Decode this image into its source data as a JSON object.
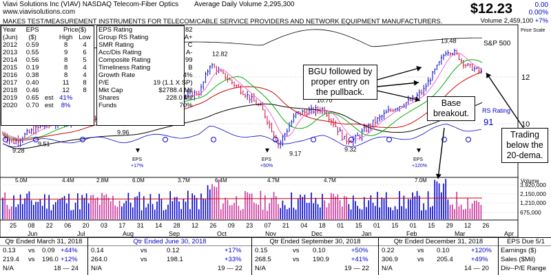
{
  "header": {
    "company_line": "Viavi Solutions Inc   (VIAV) NASDAQ Telecom-Fiber Optics",
    "avg_volume": "Average Daily Volume 2,295,300",
    "website": "www.viavisolutions.com",
    "description": "MAKES TEST/MEASUREMENT INSTRUMENTS FOR TELECOM/CABLE SERVICE PROVIDERS AND NETWORK EQUIPMENT MANUFACTURERS.",
    "price": "$12.23",
    "change": "0.00",
    "change_pct": "0.00%",
    "volume": "Volume 2,459,100",
    "vol_pct": "+7%"
  },
  "eps_table": {
    "headers": [
      "Year",
      "EPS",
      "Price($)"
    ],
    "subheaders": [
      "(Jun)",
      "($)",
      "High",
      "Low"
    ],
    "rows": [
      [
        "2012",
        "0.59",
        "",
        "8",
        "4"
      ],
      [
        "2013",
        "0.55",
        "",
        "9",
        "6"
      ],
      [
        "2014",
        "0.56",
        "",
        "8",
        "5"
      ],
      [
        "2015",
        "0.19",
        "",
        "8",
        "4"
      ],
      [
        "2016",
        "0.38",
        "",
        "8",
        "4"
      ],
      [
        "2017",
        "0.40",
        "",
        "11",
        "8"
      ],
      [
        "2018",
        "0.46",
        "",
        "12",
        "8"
      ],
      [
        "2019",
        "0.65",
        "est",
        "41%",
        ""
      ],
      [
        "2020",
        "0.70",
        "est",
        "8%",
        ""
      ]
    ]
  },
  "ratings": [
    [
      "EPS Rating",
      "82"
    ],
    [
      "Group RS Rating",
      "A+"
    ],
    [
      "SMR Rating",
      "C"
    ],
    [
      "Acc/Dis Rating",
      "A-"
    ],
    [
      "Composite Rating",
      "99"
    ],
    [
      "Timeliness Rating",
      "B"
    ],
    [
      "Growth Rate",
      "4%"
    ],
    [
      "P/E",
      "19 (1.1 X SP)"
    ],
    [
      "Mkt Cap",
      "$2788.4 Mil"
    ],
    [
      "Shares",
      "228.0 Mil"
    ],
    [
      "Funds",
      "70%"
    ]
  ],
  "callouts": {
    "bgu": "BGU followed by proper entry on the pullback.",
    "base": "Base breakout.",
    "trading": "Trading below the 20-dema."
  },
  "chart_data": {
    "type": "bar",
    "price_axis_labels": [
      "12",
      "10"
    ],
    "price_scale_label": "Price Scale",
    "sp500_label": "S&P 500",
    "rs_label": "RS Rating",
    "rs_value": "91",
    "price_annotations": [
      "13.48",
      "12.82",
      "10.70",
      "9.96",
      "9.51",
      "9.28",
      "9.17",
      "9.32"
    ],
    "eps_markers": [
      {
        "label": "EPS",
        "pct": "+17%"
      },
      {
        "label": "EPS",
        "pct": "+50%"
      },
      {
        "label": "EPS",
        "pct": "+120%"
      }
    ],
    "volume_axis_label": "Volume",
    "volume_ticks": [
      "3,920,000",
      "2,150,000",
      "1,210,000",
      "675,000"
    ],
    "volume_annotations": [
      "5.0M",
      "4.4M",
      "2.8M",
      "6.0M",
      "3.7M",
      "6.4M",
      "4.7M",
      "4.7M",
      "7.0M"
    ],
    "date_labels": [
      "25",
      "08",
      "22",
      "06",
      "20",
      "03",
      "17",
      "31",
      "14",
      "28",
      "12",
      "26",
      "09",
      "23",
      "07",
      "21",
      "04",
      "18",
      "01",
      "15",
      "01",
      "15",
      "01",
      "15",
      "29",
      "12",
      "26"
    ],
    "month_labels": [
      "Jun",
      "Jul",
      "Aug",
      "Sep",
      "Oct",
      "Nov",
      "Dec",
      "Jan",
      "Feb",
      "Mar",
      "Apr"
    ]
  },
  "quarters": [
    {
      "title": "Qtr Ended March 31, 2018",
      "eps": [
        "0.13",
        "vs",
        "0.09",
        "+44%"
      ],
      "sales": [
        "219.4",
        "vs",
        "196.0",
        "+12%"
      ],
      "na": "N/A",
      "range": "18 — 24",
      "highlight": false
    },
    {
      "title": "Qtr Ended June 30, 2018",
      "eps": [
        "0.14",
        "vs",
        "0.12",
        "+17%"
      ],
      "sales": [
        "264.0",
        "vs",
        "198.1",
        "+33%"
      ],
      "na": "N/A",
      "range": "19 — 22",
      "highlight": true
    },
    {
      "title": "Qtr Ended September 30, 2018",
      "eps": [
        "0.15",
        "vs",
        "0.10",
        "+50%"
      ],
      "sales": [
        "268.5",
        "vs",
        "190.9",
        "+41%"
      ],
      "na": "N/A",
      "range": "19 — 22",
      "highlight": false
    },
    {
      "title": "Qtr Ended December 31, 2018",
      "eps": [
        "0.22",
        "vs",
        "0.10",
        "+120%"
      ],
      "sales": [
        "306.9",
        "vs",
        "205.4",
        "+49%"
      ],
      "na": "N/A",
      "range": "14 — 20",
      "highlight": false
    }
  ],
  "eps_due": {
    "title": "EPS Due 5/1",
    "earnings": "Earnings ($)",
    "sales": "Sales ($Mil)",
    "div": "Div--P/E Range"
  },
  "colors": {
    "price_up": "#0000cc",
    "price_down": "#cc0033",
    "ma50": "#00aa00",
    "ma200": "#000000",
    "ema20": "#ee66cc",
    "ma10w": "#cc0000",
    "rs_line": "#0000cc"
  }
}
